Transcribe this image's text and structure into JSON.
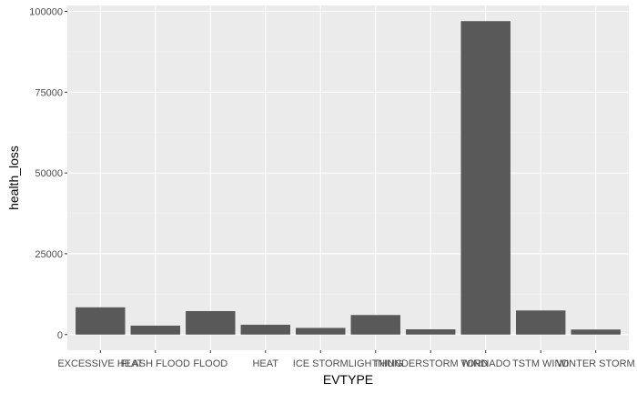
{
  "chart_data": {
    "type": "bar",
    "xlabel": "EVTYPE",
    "ylabel": "health_loss",
    "categories": [
      "EXCESSIVE HEAT",
      "FLASH FLOOD",
      "FLOOD",
      "HEAT",
      "ICE STORM",
      "LIGHTNING",
      "THUNDERSTORM WIND",
      "TORNADO",
      "TSTM WIND",
      "WINTER STORM"
    ],
    "values": [
      8430,
      2760,
      7260,
      3040,
      2060,
      6050,
      1620,
      96980,
      7460,
      1560
    ],
    "ylim": [
      -4850,
      101830
    ],
    "yticks": [
      0,
      25000,
      50000,
      75000,
      100000
    ],
    "ytick_labels": [
      "0",
      "25000",
      "50000",
      "75000",
      "100000"
    ],
    "grid": true,
    "legend": "none",
    "colors": {
      "panel": "#ebebeb",
      "bar": "#595959",
      "grid_major": "#ffffff",
      "grid_minor": "#f2f2f2",
      "text": "#4d4d4d"
    }
  }
}
